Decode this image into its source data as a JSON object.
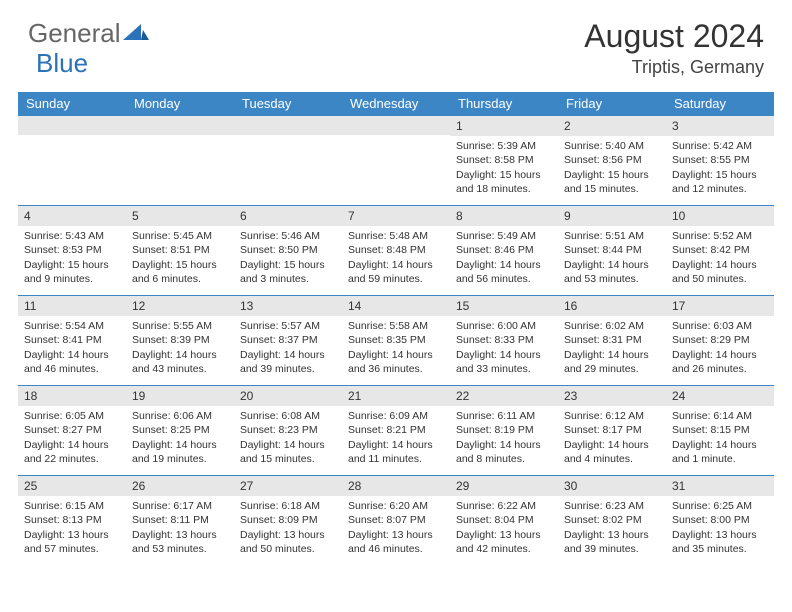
{
  "brand": {
    "general": "General",
    "blue": "Blue"
  },
  "title": "August 2024",
  "location": "Triptis, Germany",
  "weekdays": [
    "Sunday",
    "Monday",
    "Tuesday",
    "Wednesday",
    "Thursday",
    "Friday",
    "Saturday"
  ],
  "colors": {
    "header_bg": "#3d86c6",
    "header_fg": "#ffffff",
    "daybar_bg": "#e7e7e7",
    "rule": "#3d86c6"
  },
  "first_weekday_index": 4,
  "days": [
    {
      "n": "1",
      "sunrise": "5:39 AM",
      "sunset": "8:58 PM",
      "daylight": "15 hours and 18 minutes."
    },
    {
      "n": "2",
      "sunrise": "5:40 AM",
      "sunset": "8:56 PM",
      "daylight": "15 hours and 15 minutes."
    },
    {
      "n": "3",
      "sunrise": "5:42 AM",
      "sunset": "8:55 PM",
      "daylight": "15 hours and 12 minutes."
    },
    {
      "n": "4",
      "sunrise": "5:43 AM",
      "sunset": "8:53 PM",
      "daylight": "15 hours and 9 minutes."
    },
    {
      "n": "5",
      "sunrise": "5:45 AM",
      "sunset": "8:51 PM",
      "daylight": "15 hours and 6 minutes."
    },
    {
      "n": "6",
      "sunrise": "5:46 AM",
      "sunset": "8:50 PM",
      "daylight": "15 hours and 3 minutes."
    },
    {
      "n": "7",
      "sunrise": "5:48 AM",
      "sunset": "8:48 PM",
      "daylight": "14 hours and 59 minutes."
    },
    {
      "n": "8",
      "sunrise": "5:49 AM",
      "sunset": "8:46 PM",
      "daylight": "14 hours and 56 minutes."
    },
    {
      "n": "9",
      "sunrise": "5:51 AM",
      "sunset": "8:44 PM",
      "daylight": "14 hours and 53 minutes."
    },
    {
      "n": "10",
      "sunrise": "5:52 AM",
      "sunset": "8:42 PM",
      "daylight": "14 hours and 50 minutes."
    },
    {
      "n": "11",
      "sunrise": "5:54 AM",
      "sunset": "8:41 PM",
      "daylight": "14 hours and 46 minutes."
    },
    {
      "n": "12",
      "sunrise": "5:55 AM",
      "sunset": "8:39 PM",
      "daylight": "14 hours and 43 minutes."
    },
    {
      "n": "13",
      "sunrise": "5:57 AM",
      "sunset": "8:37 PM",
      "daylight": "14 hours and 39 minutes."
    },
    {
      "n": "14",
      "sunrise": "5:58 AM",
      "sunset": "8:35 PM",
      "daylight": "14 hours and 36 minutes."
    },
    {
      "n": "15",
      "sunrise": "6:00 AM",
      "sunset": "8:33 PM",
      "daylight": "14 hours and 33 minutes."
    },
    {
      "n": "16",
      "sunrise": "6:02 AM",
      "sunset": "8:31 PM",
      "daylight": "14 hours and 29 minutes."
    },
    {
      "n": "17",
      "sunrise": "6:03 AM",
      "sunset": "8:29 PM",
      "daylight": "14 hours and 26 minutes."
    },
    {
      "n": "18",
      "sunrise": "6:05 AM",
      "sunset": "8:27 PM",
      "daylight": "14 hours and 22 minutes."
    },
    {
      "n": "19",
      "sunrise": "6:06 AM",
      "sunset": "8:25 PM",
      "daylight": "14 hours and 19 minutes."
    },
    {
      "n": "20",
      "sunrise": "6:08 AM",
      "sunset": "8:23 PM",
      "daylight": "14 hours and 15 minutes."
    },
    {
      "n": "21",
      "sunrise": "6:09 AM",
      "sunset": "8:21 PM",
      "daylight": "14 hours and 11 minutes."
    },
    {
      "n": "22",
      "sunrise": "6:11 AM",
      "sunset": "8:19 PM",
      "daylight": "14 hours and 8 minutes."
    },
    {
      "n": "23",
      "sunrise": "6:12 AM",
      "sunset": "8:17 PM",
      "daylight": "14 hours and 4 minutes."
    },
    {
      "n": "24",
      "sunrise": "6:14 AM",
      "sunset": "8:15 PM",
      "daylight": "14 hours and 1 minute."
    },
    {
      "n": "25",
      "sunrise": "6:15 AM",
      "sunset": "8:13 PM",
      "daylight": "13 hours and 57 minutes."
    },
    {
      "n": "26",
      "sunrise": "6:17 AM",
      "sunset": "8:11 PM",
      "daylight": "13 hours and 53 minutes."
    },
    {
      "n": "27",
      "sunrise": "6:18 AM",
      "sunset": "8:09 PM",
      "daylight": "13 hours and 50 minutes."
    },
    {
      "n": "28",
      "sunrise": "6:20 AM",
      "sunset": "8:07 PM",
      "daylight": "13 hours and 46 minutes."
    },
    {
      "n": "29",
      "sunrise": "6:22 AM",
      "sunset": "8:04 PM",
      "daylight": "13 hours and 42 minutes."
    },
    {
      "n": "30",
      "sunrise": "6:23 AM",
      "sunset": "8:02 PM",
      "daylight": "13 hours and 39 minutes."
    },
    {
      "n": "31",
      "sunrise": "6:25 AM",
      "sunset": "8:00 PM",
      "daylight": "13 hours and 35 minutes."
    }
  ],
  "labels": {
    "sunrise": "Sunrise: ",
    "sunset": "Sunset: ",
    "daylight": "Daylight: "
  }
}
